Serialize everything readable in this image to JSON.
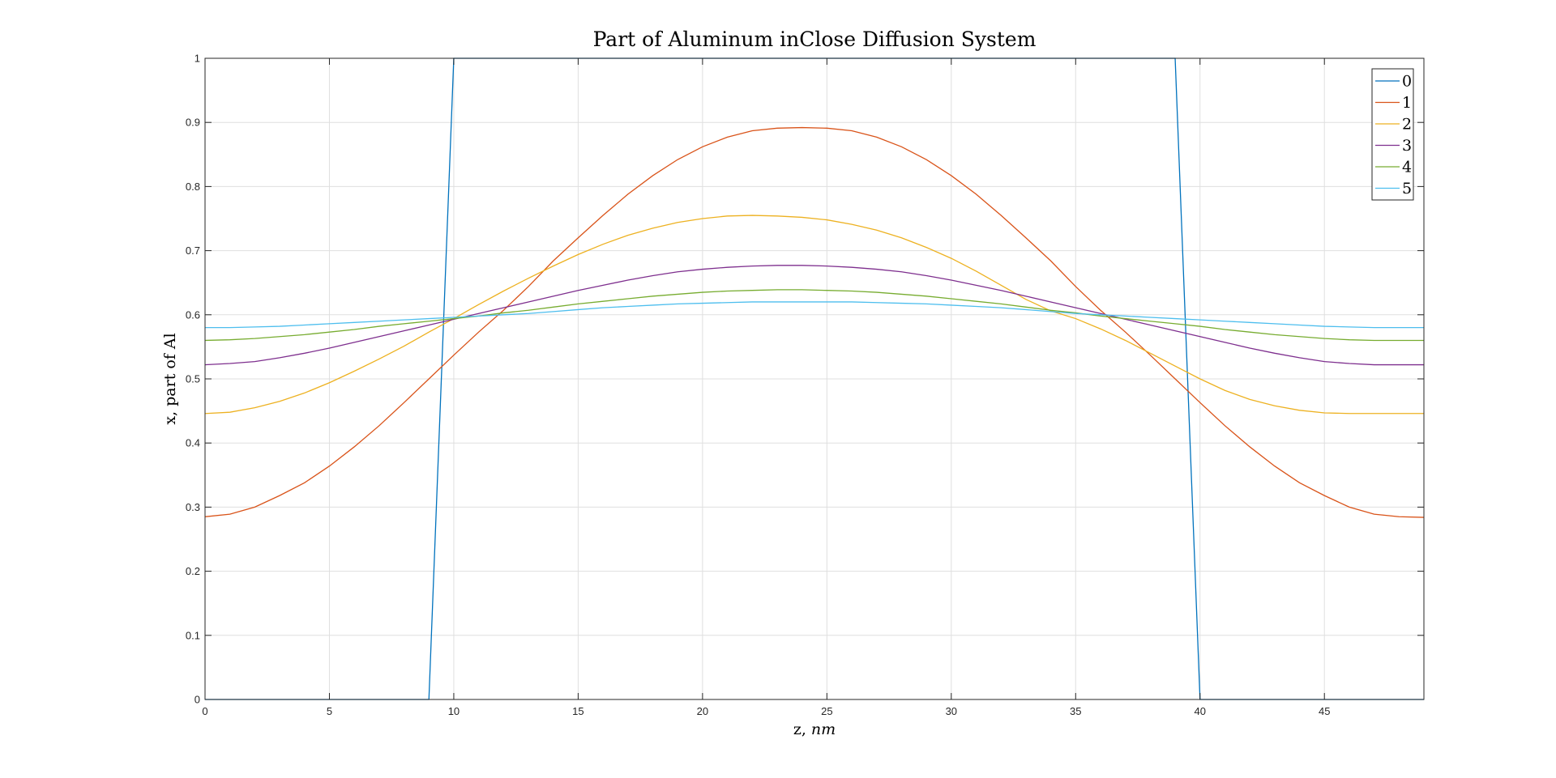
{
  "chart_data": {
    "type": "line",
    "title": "Part of Aluminum inClose Diffusion System",
    "xlabel": "z, nm",
    "xlabel_parts": {
      "main": "z, ",
      "italic": "nm"
    },
    "ylabel": "x, part of Al",
    "xlim": [
      0,
      49
    ],
    "ylim": [
      0,
      1
    ],
    "xticks": [
      0,
      5,
      10,
      15,
      20,
      25,
      30,
      35,
      40,
      45
    ],
    "xtick_labels": [
      "0",
      "5",
      "10",
      "15",
      "20",
      "25",
      "30",
      "35",
      "40",
      "45"
    ],
    "yticks": [
      0,
      0.1,
      0.2,
      0.3,
      0.4,
      0.5,
      0.6,
      0.7,
      0.8,
      0.9,
      1
    ],
    "ytick_labels": [
      "0",
      "0.1",
      "0.2",
      "0.3",
      "0.4",
      "0.5",
      "0.6",
      "0.7",
      "0.8",
      "0.9",
      "1"
    ],
    "grid": true,
    "legend_position": "top-right",
    "x": [
      0,
      1,
      2,
      3,
      4,
      5,
      6,
      7,
      8,
      9,
      10,
      11,
      12,
      13,
      14,
      15,
      16,
      17,
      18,
      19,
      20,
      21,
      22,
      23,
      24,
      25,
      26,
      27,
      28,
      29,
      30,
      31,
      32,
      33,
      34,
      35,
      36,
      37,
      38,
      39,
      40,
      41,
      42,
      43,
      44,
      45,
      46,
      47,
      48,
      49
    ],
    "series": [
      {
        "name": "0",
        "color": "#0072BD",
        "values": [
          0,
          0,
          0,
          0,
          0,
          0,
          0,
          0,
          0,
          0,
          1,
          1,
          1,
          1,
          1,
          1,
          1,
          1,
          1,
          1,
          1,
          1,
          1,
          1,
          1,
          1,
          1,
          1,
          1,
          1,
          1,
          1,
          1,
          1,
          1,
          1,
          1,
          1,
          1,
          1,
          0,
          0,
          0,
          0,
          0,
          0,
          0,
          0,
          0,
          0
        ]
      },
      {
        "name": "1",
        "color": "#D95319",
        "values": [
          0.285,
          0.289,
          0.3,
          0.318,
          0.338,
          0.364,
          0.394,
          0.427,
          0.463,
          0.5,
          0.537,
          0.573,
          0.607,
          0.644,
          0.684,
          0.72,
          0.755,
          0.788,
          0.817,
          0.842,
          0.862,
          0.877,
          0.887,
          0.891,
          0.892,
          0.891,
          0.887,
          0.877,
          0.862,
          0.842,
          0.817,
          0.788,
          0.755,
          0.72,
          0.684,
          0.644,
          0.607,
          0.573,
          0.537,
          0.5,
          0.463,
          0.427,
          0.394,
          0.364,
          0.338,
          0.318,
          0.3,
          0.289,
          0.285,
          0.284
        ]
      },
      {
        "name": "2",
        "color": "#EDB120",
        "values": [
          0.446,
          0.448,
          0.455,
          0.465,
          0.478,
          0.494,
          0.512,
          0.531,
          0.551,
          0.573,
          0.594,
          0.616,
          0.637,
          0.657,
          0.676,
          0.694,
          0.71,
          0.724,
          0.735,
          0.744,
          0.75,
          0.754,
          0.755,
          0.754,
          0.752,
          0.748,
          0.741,
          0.732,
          0.72,
          0.705,
          0.688,
          0.668,
          0.646,
          0.624,
          0.606,
          0.594,
          0.578,
          0.56,
          0.54,
          0.52,
          0.5,
          0.482,
          0.468,
          0.458,
          0.451,
          0.447,
          0.446,
          0.446,
          0.446,
          0.446
        ]
      },
      {
        "name": "3",
        "color": "#7E2F8E",
        "values": [
          0.522,
          0.524,
          0.527,
          0.533,
          0.54,
          0.548,
          0.557,
          0.566,
          0.575,
          0.584,
          0.593,
          0.602,
          0.611,
          0.62,
          0.629,
          0.638,
          0.646,
          0.654,
          0.661,
          0.667,
          0.671,
          0.674,
          0.676,
          0.677,
          0.677,
          0.676,
          0.674,
          0.671,
          0.667,
          0.661,
          0.654,
          0.646,
          0.638,
          0.629,
          0.62,
          0.611,
          0.602,
          0.593,
          0.584,
          0.575,
          0.566,
          0.557,
          0.548,
          0.54,
          0.533,
          0.527,
          0.524,
          0.522,
          0.522,
          0.522
        ]
      },
      {
        "name": "4",
        "color": "#77AC30",
        "values": [
          0.56,
          0.561,
          0.563,
          0.566,
          0.569,
          0.573,
          0.577,
          0.582,
          0.586,
          0.59,
          0.594,
          0.598,
          0.603,
          0.607,
          0.612,
          0.617,
          0.621,
          0.625,
          0.629,
          0.632,
          0.635,
          0.637,
          0.638,
          0.639,
          0.639,
          0.638,
          0.637,
          0.635,
          0.632,
          0.629,
          0.625,
          0.621,
          0.617,
          0.612,
          0.607,
          0.603,
          0.598,
          0.594,
          0.59,
          0.586,
          0.582,
          0.577,
          0.573,
          0.569,
          0.566,
          0.563,
          0.561,
          0.56,
          0.56,
          0.56
        ]
      },
      {
        "name": "5",
        "color": "#4DBEEE",
        "values": [
          0.58,
          0.58,
          0.581,
          0.582,
          0.584,
          0.586,
          0.588,
          0.59,
          0.592,
          0.594,
          0.596,
          0.598,
          0.6,
          0.602,
          0.605,
          0.608,
          0.611,
          0.613,
          0.615,
          0.617,
          0.618,
          0.619,
          0.62,
          0.62,
          0.62,
          0.62,
          0.62,
          0.619,
          0.618,
          0.617,
          0.615,
          0.613,
          0.611,
          0.608,
          0.605,
          0.602,
          0.6,
          0.598,
          0.596,
          0.594,
          0.592,
          0.59,
          0.588,
          0.586,
          0.584,
          0.582,
          0.581,
          0.58,
          0.58,
          0.58
        ]
      }
    ]
  }
}
